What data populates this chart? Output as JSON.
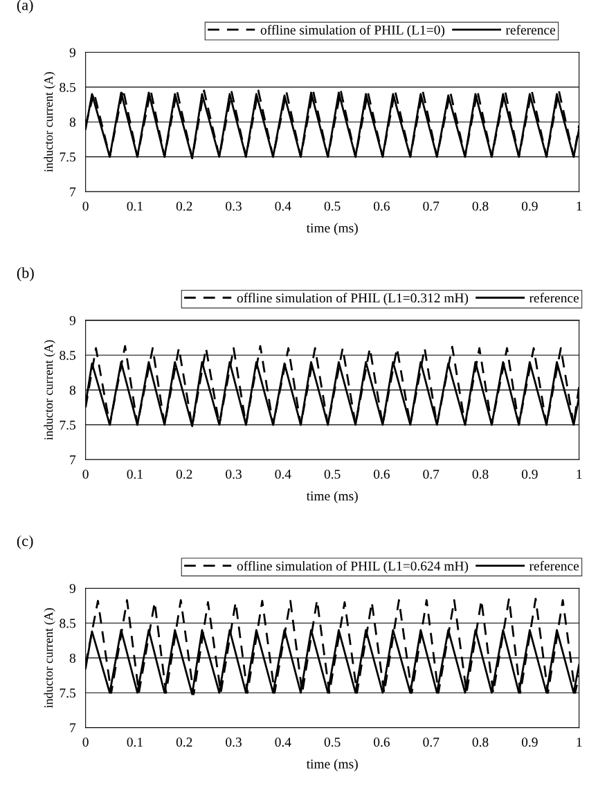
{
  "chart_data": [
    {
      "type": "line",
      "annotations": [
        "(a)"
      ],
      "xlabel": "time (ms)",
      "ylabel": "inductor current (A)",
      "xlim": [
        0,
        1
      ],
      "xticks": [
        0,
        0.1,
        0.2,
        0.3,
        0.4,
        0.5,
        0.6,
        0.7,
        0.8,
        0.9,
        1
      ],
      "ylim": [
        7,
        9
      ],
      "yticks": [
        7,
        7.5,
        8,
        8.5,
        9
      ],
      "grid": "y",
      "legend": "top",
      "marker": "none",
      "series": [
        {
          "name": "offline simulation of PHIL (L1=0)",
          "color": "#000000",
          "line_style": "dashed",
          "x": [
            0,
            0.017,
            0.049,
            0.076,
            0.105,
            0.132,
            0.16,
            0.185,
            0.216,
            0.24,
            0.271,
            0.296,
            0.325,
            0.35,
            0.38,
            0.407,
            0.436,
            0.461,
            0.491,
            0.517,
            0.547,
            0.572,
            0.602,
            0.627,
            0.658,
            0.683,
            0.712,
            0.739,
            0.769,
            0.794,
            0.823,
            0.85,
            0.878,
            0.904,
            0.934,
            0.959,
            0.989,
            1
          ],
          "values": [
            7.95,
            8.42,
            7.5,
            8.47,
            7.5,
            8.45,
            7.5,
            8.45,
            7.48,
            8.45,
            7.5,
            8.43,
            7.5,
            8.45,
            7.5,
            8.43,
            7.5,
            8.45,
            7.5,
            8.45,
            7.5,
            8.43,
            7.5,
            8.45,
            7.5,
            8.45,
            7.5,
            8.43,
            7.5,
            8.45,
            7.5,
            8.45,
            7.5,
            8.45,
            7.5,
            8.45,
            7.5,
            7.95
          ]
        },
        {
          "name": "reference",
          "color": "#000000",
          "line_style": "solid",
          "x": [
            0,
            0.013,
            0.049,
            0.072,
            0.105,
            0.128,
            0.16,
            0.181,
            0.216,
            0.236,
            0.271,
            0.292,
            0.325,
            0.346,
            0.38,
            0.403,
            0.436,
            0.457,
            0.491,
            0.513,
            0.547,
            0.568,
            0.602,
            0.623,
            0.658,
            0.679,
            0.712,
            0.735,
            0.769,
            0.79,
            0.823,
            0.846,
            0.878,
            0.9,
            0.934,
            0.955,
            0.989,
            1
          ],
          "values": [
            7.9,
            8.4,
            7.5,
            8.42,
            7.5,
            8.42,
            7.5,
            8.4,
            7.48,
            8.4,
            7.5,
            8.4,
            7.5,
            8.4,
            7.5,
            8.38,
            7.5,
            8.42,
            7.5,
            8.42,
            7.5,
            8.4,
            7.5,
            8.4,
            7.5,
            8.4,
            7.5,
            8.38,
            7.5,
            8.4,
            7.5,
            8.4,
            7.5,
            8.4,
            7.5,
            8.4,
            7.5,
            7.9
          ]
        }
      ]
    },
    {
      "type": "line",
      "annotations": [
        "(b)"
      ],
      "xlabel": "time (ms)",
      "ylabel": "inductor current (A)",
      "xlim": [
        0,
        1
      ],
      "xticks": [
        0,
        0.1,
        0.2,
        0.3,
        0.4,
        0.5,
        0.6,
        0.7,
        0.8,
        0.9,
        1
      ],
      "ylim": [
        7,
        9
      ],
      "yticks": [
        7,
        7.5,
        8,
        8.5,
        9
      ],
      "grid": "y",
      "legend": "top",
      "marker": "none",
      "series": [
        {
          "name": "offline simulation of PHIL (L1=0.312 mH)",
          "color": "#000000",
          "line_style": "dashed",
          "x": [
            0,
            0.021,
            0.049,
            0.08,
            0.105,
            0.136,
            0.16,
            0.189,
            0.216,
            0.244,
            0.271,
            0.3,
            0.325,
            0.354,
            0.38,
            0.411,
            0.436,
            0.465,
            0.491,
            0.521,
            0.547,
            0.576,
            0.602,
            0.631,
            0.658,
            0.687,
            0.712,
            0.743,
            0.769,
            0.798,
            0.823,
            0.854,
            0.878,
            0.908,
            0.934,
            0.963,
            0.989,
            1
          ],
          "values": [
            7.75,
            8.6,
            7.5,
            8.63,
            7.5,
            8.6,
            7.5,
            8.6,
            7.48,
            8.6,
            7.5,
            8.6,
            7.5,
            8.63,
            7.5,
            8.6,
            7.5,
            8.6,
            7.5,
            8.6,
            7.5,
            8.6,
            7.5,
            8.6,
            7.5,
            8.6,
            7.5,
            8.62,
            7.5,
            8.6,
            7.5,
            8.6,
            7.5,
            8.6,
            7.5,
            8.6,
            7.5,
            8.05
          ]
        },
        {
          "name": "reference",
          "color": "#000000",
          "line_style": "solid",
          "x": [
            0,
            0.013,
            0.049,
            0.072,
            0.105,
            0.128,
            0.16,
            0.181,
            0.216,
            0.236,
            0.271,
            0.292,
            0.325,
            0.346,
            0.38,
            0.403,
            0.436,
            0.457,
            0.491,
            0.513,
            0.547,
            0.568,
            0.602,
            0.623,
            0.658,
            0.679,
            0.712,
            0.735,
            0.769,
            0.79,
            0.823,
            0.846,
            0.878,
            0.9,
            0.934,
            0.955,
            0.989,
            1
          ],
          "values": [
            7.8,
            8.38,
            7.5,
            8.4,
            7.5,
            8.4,
            7.5,
            8.4,
            7.48,
            8.4,
            7.5,
            8.4,
            7.5,
            8.4,
            7.5,
            8.38,
            7.5,
            8.4,
            7.5,
            8.4,
            7.5,
            8.4,
            7.5,
            8.4,
            7.5,
            8.4,
            7.5,
            8.38,
            7.5,
            8.4,
            7.5,
            8.4,
            7.5,
            8.4,
            7.5,
            8.4,
            7.5,
            7.9
          ]
        }
      ]
    },
    {
      "type": "line",
      "annotations": [
        "(c)"
      ],
      "xlabel": "time (ms)",
      "ylabel": "inductor current (A)",
      "xlim": [
        0,
        1
      ],
      "xticks": [
        0,
        0.1,
        0.2,
        0.3,
        0.4,
        0.5,
        0.6,
        0.7,
        0.8,
        0.9,
        1
      ],
      "ylim": [
        7,
        9
      ],
      "yticks": [
        7,
        7.5,
        8,
        8.5,
        9
      ],
      "grid": "y",
      "legend": "top",
      "marker": "none",
      "series": [
        {
          "name": "offline simulation of PHIL (L1=0.624 mH)",
          "color": "#000000",
          "line_style": "dashed",
          "x": [
            0,
            0.025,
            0.052,
            0.084,
            0.108,
            0.14,
            0.163,
            0.193,
            0.219,
            0.248,
            0.274,
            0.304,
            0.328,
            0.358,
            0.383,
            0.415,
            0.439,
            0.469,
            0.494,
            0.525,
            0.55,
            0.58,
            0.605,
            0.635,
            0.661,
            0.691,
            0.715,
            0.747,
            0.772,
            0.802,
            0.826,
            0.858,
            0.881,
            0.912,
            0.937,
            0.967,
            0.992,
            1
          ],
          "values": [
            7.9,
            8.82,
            7.5,
            8.83,
            7.5,
            8.8,
            7.5,
            8.83,
            7.48,
            8.8,
            7.5,
            8.8,
            7.5,
            8.82,
            7.5,
            8.82,
            7.5,
            8.83,
            7.5,
            8.8,
            7.5,
            8.8,
            7.5,
            8.83,
            7.5,
            8.83,
            7.5,
            8.83,
            7.5,
            8.83,
            7.5,
            8.85,
            7.5,
            8.85,
            7.5,
            8.83,
            7.5,
            7.75
          ]
        },
        {
          "name": "reference",
          "color": "#000000",
          "line_style": "solid",
          "x": [
            0,
            0.013,
            0.049,
            0.072,
            0.105,
            0.128,
            0.16,
            0.181,
            0.216,
            0.236,
            0.271,
            0.292,
            0.325,
            0.346,
            0.38,
            0.403,
            0.436,
            0.457,
            0.491,
            0.513,
            0.547,
            0.568,
            0.602,
            0.623,
            0.658,
            0.679,
            0.712,
            0.735,
            0.769,
            0.79,
            0.823,
            0.846,
            0.878,
            0.9,
            0.934,
            0.955,
            0.989,
            1
          ],
          "values": [
            7.85,
            8.38,
            7.5,
            8.4,
            7.5,
            8.4,
            7.5,
            8.4,
            7.48,
            8.4,
            7.5,
            8.4,
            7.5,
            8.4,
            7.5,
            8.4,
            7.5,
            8.4,
            7.5,
            8.4,
            7.5,
            8.4,
            7.5,
            8.4,
            7.5,
            8.4,
            7.5,
            8.4,
            7.5,
            8.4,
            7.5,
            8.4,
            7.5,
            8.4,
            7.5,
            8.4,
            7.5,
            7.9
          ]
        }
      ]
    }
  ]
}
